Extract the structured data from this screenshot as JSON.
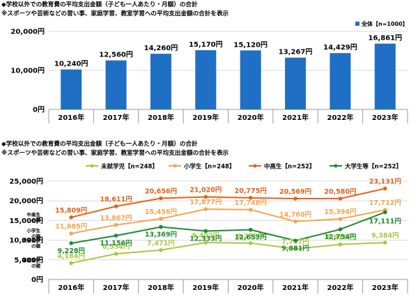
{
  "chart_data": [
    {
      "type": "bar",
      "title": "◆学校以外での教育費の平均支出金額（子ども一人あたり・月額）の合計",
      "subtitle": "※スポーツや芸術などの習い事、家庭学習、教室学習への平均支出金額の合計を表示",
      "categories": [
        "2016年",
        "2017年",
        "2018年",
        "2019年",
        "2020年",
        "2021年",
        "2022年",
        "2023年"
      ],
      "values": [
        10240,
        12560,
        14260,
        15170,
        15120,
        13267,
        14429,
        16861
      ],
      "value_labels": [
        "10,240円",
        "12,560円",
        "14,260円",
        "15,170円",
        "15,120円",
        "13,267円",
        "14,429円",
        "16,861円"
      ],
      "y_ticks": [
        "0円",
        "10,000円",
        "20,000円"
      ],
      "ylim": [
        0,
        20000
      ],
      "legend": {
        "name": "全体【n=1000】",
        "position": "top-right"
      },
      "grid": true,
      "colors": {
        "bar": "#1f6fc5"
      }
    },
    {
      "type": "line",
      "title": "◆学校以外での教育費の平均支出金額（子ども一人あたり・月額）の合計",
      "subtitle": "※スポーツや芸術などの習い事、家庭学習、教室学習への平均支出金額の合計を表示",
      "categories": [
        "2016年",
        "2017年",
        "2018年",
        "2019年",
        "2020年",
        "2021年",
        "2022年",
        "2023年"
      ],
      "y_ticks": [
        "0円",
        "5,000円",
        "10,000円",
        "15,000円",
        "20,000円",
        "25,000円"
      ],
      "ylim": [
        0,
        25000
      ],
      "grid": true,
      "legend_position": "top",
      "series": [
        {
          "name": "未就学児【n=248】",
          "color": "#a9c93b",
          "label": "未就学児の親",
          "values": [
            4164,
            6534,
            7471,
            9402,
            9253,
            7797,
            8916,
            9384
          ],
          "value_labels": [
            "4,164円",
            "6,534円",
            "7,471円",
            "9,402円",
            "9,253円",
            "7,797円",
            "8,916円",
            "9,384円"
          ]
        },
        {
          "name": "小学生【n=248】",
          "color": "#f3a64f",
          "label": "小学生の親",
          "values": [
            11685,
            13867,
            15456,
            17877,
            17748,
            14760,
            15394,
            17712
          ],
          "value_labels": [
            "11,685円",
            "13,867円",
            "15,456円",
            "17,877円",
            "17,748円",
            "14,760円",
            "15,394円",
            "17,712円"
          ]
        },
        {
          "name": "中高生【n=252】",
          "color": "#e2621b",
          "label": "中高生の親",
          "values": [
            15809,
            18611,
            20656,
            21020,
            20775,
            20569,
            20580,
            23131
          ],
          "value_labels": [
            "15,809円",
            "18,611円",
            "20,656円",
            "21,020円",
            "20,775円",
            "20,569円",
            "20,580円",
            "23,131円"
          ]
        },
        {
          "name": "大学生等【n=252】",
          "color": "#1d8a2f",
          "label": "大学生等の親",
          "values": [
            9228,
            11156,
            13369,
            12333,
            12653,
            9881,
            12754,
            17111
          ],
          "value_labels": [
            "9,228円",
            "11,156円",
            "13,369円",
            "12,333円",
            "12,653円",
            "9,881円",
            "12,754円",
            "17,111円"
          ]
        }
      ]
    }
  ]
}
